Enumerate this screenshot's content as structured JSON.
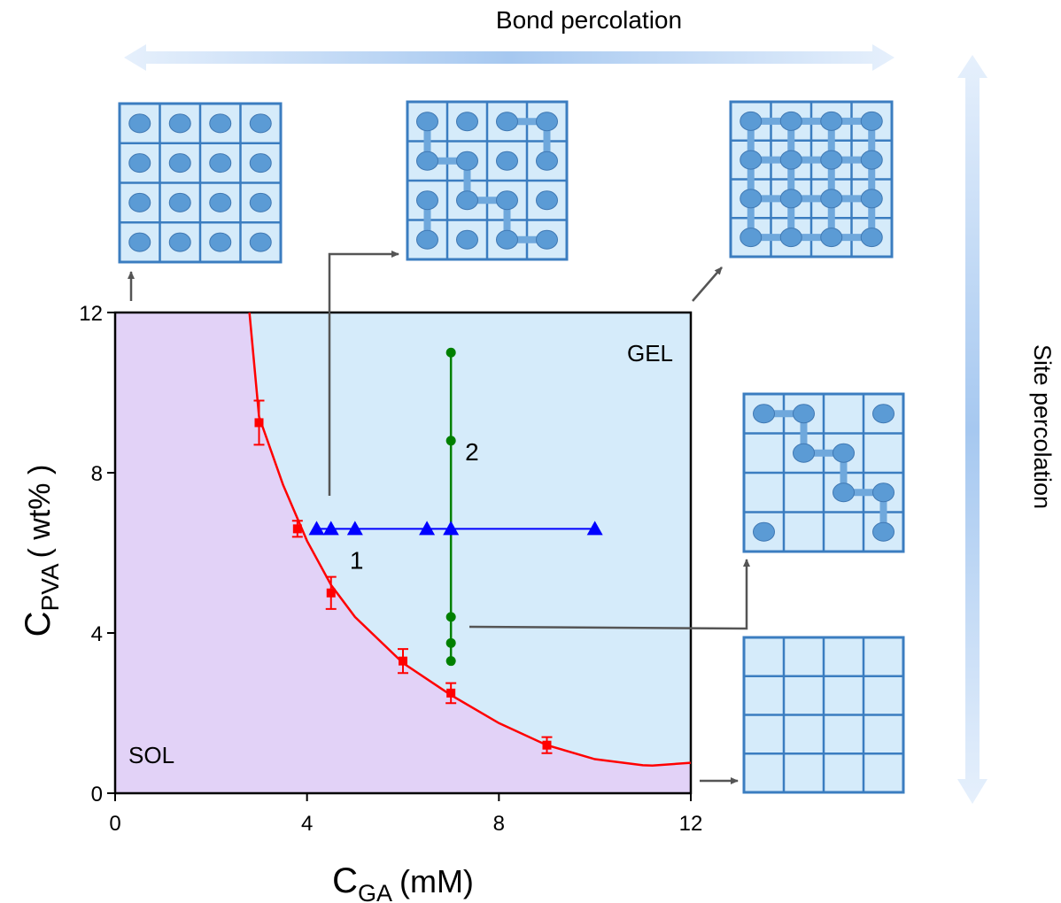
{
  "chart_data": {
    "type": "scatter",
    "xlim": [
      0,
      12
    ],
    "ylim": [
      0,
      12
    ],
    "xticks": [
      0,
      4,
      8,
      12
    ],
    "yticks": [
      0,
      4,
      8,
      12
    ],
    "x_label": {
      "main": "C",
      "sub": "GA",
      "unit": "(mM)"
    },
    "y_label": {
      "main": "C",
      "sub": "PVA",
      "unit": "( wt% )"
    },
    "annotations": {
      "gel": "GEL",
      "sol": "SOL",
      "bond": "Bond percolation",
      "site": "Site percolation"
    },
    "gel_color": "#d5ebfa",
    "sol_color": "#e2d2f7",
    "series": [
      {
        "color": "#ff0000",
        "marker": "square",
        "x": [
          3,
          3.8,
          4.5,
          6,
          7,
          9
        ],
        "values": [
          9.25,
          6.6,
          5.0,
          3.3,
          2.5,
          1.2
        ],
        "errors": [
          0.55,
          0.2,
          0.4,
          0.3,
          0.25,
          0.2
        ]
      },
      {
        "color": "#ff0000",
        "marker": "line",
        "x": [
          2.8,
          3,
          3.5,
          4,
          4.5,
          5,
          6,
          7,
          8,
          9,
          10,
          11,
          11.2,
          12
        ],
        "values": [
          12,
          9.4,
          7.7,
          6.3,
          5.2,
          4.4,
          3.25,
          2.45,
          1.75,
          1.2,
          0.85,
          0.7,
          0.69,
          0.76
        ]
      },
      {
        "name": "1",
        "color": "#0000ff",
        "marker": "triangle",
        "x": [
          4.2,
          4.5,
          5,
          6.5,
          7,
          10
        ],
        "values": [
          6.6,
          6.6,
          6.6,
          6.6,
          6.6,
          6.6
        ]
      },
      {
        "name": "2",
        "color": "#008000",
        "marker": "circle",
        "x": [
          7,
          7,
          7,
          7,
          7
        ],
        "values": [
          11,
          8.8,
          4.4,
          3.75,
          3.3
        ]
      }
    ]
  }
}
